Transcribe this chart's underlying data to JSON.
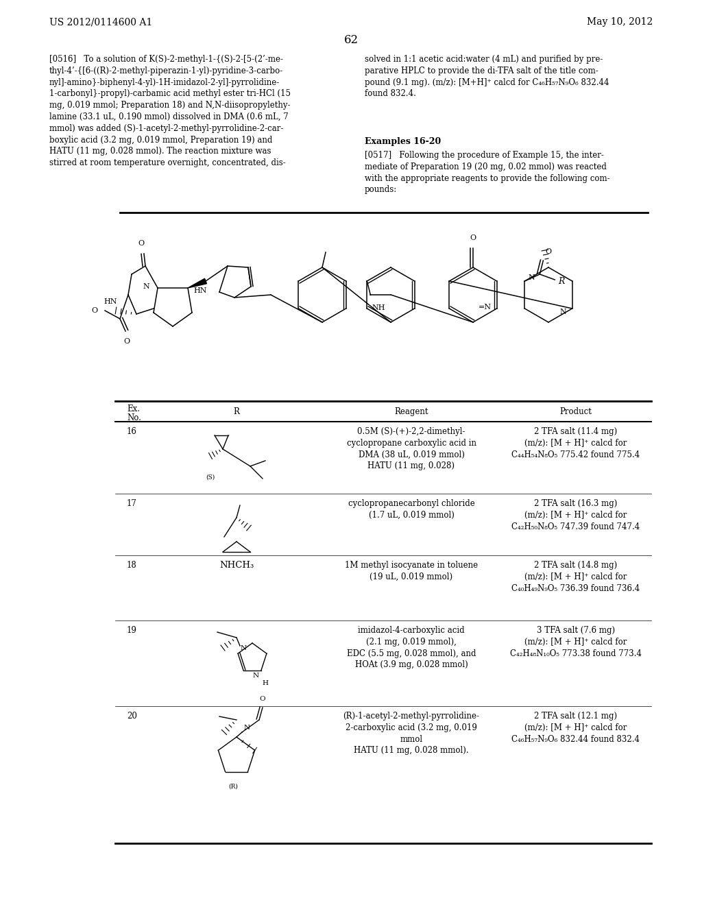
{
  "header_left": "US 2012/0114600 A1",
  "header_right": "May 10, 2012",
  "page_number": "62",
  "left_col_text": "[0516]   To a solution of K(S)-2-methyl-1-{(S)-2-[5-(2’-me-\nthyl-4’-{[6-((R)-2-methyl-piperazin-1-yl)-pyridine-3-carbo-\nnyl]-amino}-biphenyl-4-yl)-1H-imidazol-2-yl]-pyrrolidine-\n1-carbonyl}-propyl)-carbamic acid methyl ester tri-HCl (15\nmg, 0.019 mmol; Preparation 18) and N,N-diisopropylethy-\nlamine (33.1 uL, 0.190 mmol) dissolved in DMA (0.6 mL, 7\nmmol) was added (S)-1-acetyl-2-methyl-pyrrolidine-2-car-\nboxylic acid (3.2 mg, 0.019 mmol, Preparation 19) and\nHATU (11 mg, 0.028 mmol). The reaction mixture was\nstirred at room temperature overnight, concentrated, dis-",
  "right_col_text": "solved in 1:1 acetic acid:water (4 mL) and purified by pre-\nparative HPLC to provide the di-TFA salt of the title com-\npound (9.1 mg). (m/z): [M+H]⁺ calcd for C₄₆H₅₇N₉O₆ 832.44\nfound 832.4.",
  "examples_header": "Examples 16-20",
  "para0517": "[0517]   Following the procedure of Example 15, the inter-\nmediate of Preparation 19 (20 mg, 0.02 mmol) was reacted\nwith the appropriate reagents to provide the following com-\npounds:",
  "background_color": "#ffffff",
  "text_color": "#000000",
  "font_size_body": 8.5,
  "font_size_header": 9.5,
  "table_rows": [
    {
      "ex_no": "16",
      "reagent": "0.5M (S)-(+)-2,2-dimethyl-\ncyclopropane carboxylic acid in\nDMA (38 uL, 0.019 mmol)\nHATU (11 mg, 0.028)",
      "product": "2 TFA salt (11.4 mg)\n(m/z): [M + H]⁺ calcd for\nC₄₄H₅₄N₈O₅ 775.42 found 775.4"
    },
    {
      "ex_no": "17",
      "reagent": "cyclopropanecarbonyl chloride\n(1.7 uL, 0.019 mmol)",
      "product": "2 TFA salt (16.3 mg)\n(m/z): [M + H]⁺ calcd for\nC₄₂H₅₀N₈O₅ 747.39 found 747.4"
    },
    {
      "ex_no": "18",
      "reagent": "1M methyl isocyanate in toluene\n(19 uL, 0.019 mmol)",
      "product": "2 TFA salt (14.8 mg)\n(m/z): [M + H]⁺ calcd for\nC₄₀H₄₉N₉O₅ 736.39 found 736.4"
    },
    {
      "ex_no": "19",
      "reagent": "imidazol-4-carboxylic acid\n(2.1 mg, 0.019 mmol),\nEDC (5.5 mg, 0.028 mmol), and\nHOAt (3.9 mg, 0.028 mmol)",
      "product": "3 TFA salt (7.6 mg)\n(m/z): [M + H]⁺ calcd for\nC₄₂H₄₈N₁₀O₅ 773.38 found 773.4"
    },
    {
      "ex_no": "20",
      "reagent": "(R)-1-acetyl-2-methyl-pyrrolidine-\n2-carboxylic acid (3.2 mg, 0.019\nmmol\nHATU (11 mg, 0.028 mmol).",
      "product": "2 TFA salt (12.1 mg)\n(m/z): [M + H]⁺ calcd for\nC₄₆H₅₇N₉O₆ 832.44 found 832.4"
    }
  ]
}
